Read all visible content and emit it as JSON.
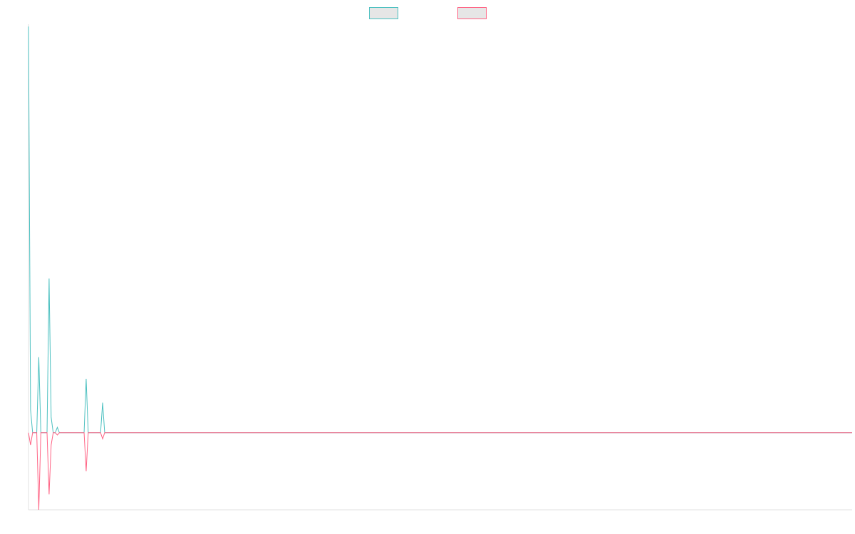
{
  "chart_data": {
    "type": "line",
    "title": "",
    "xlabel": "",
    "ylabel": "",
    "legend_position": "top-center",
    "grid": false,
    "x_labels_shown": false,
    "y_labels_shown": false,
    "xlim": [
      0,
      400
    ],
    "ylim": [
      -100,
      530
    ],
    "series": [
      {
        "color": "#4bc0c0",
        "legend_fill": "#e6e6e6",
        "x": [
          0,
          1,
          2,
          3,
          4,
          5,
          6,
          7,
          8,
          9,
          10,
          11,
          12,
          13,
          14,
          15,
          16,
          27,
          28,
          29,
          30,
          35,
          36,
          37,
          38,
          400
        ],
        "values": [
          527,
          30,
          0,
          0,
          0,
          98,
          0,
          0,
          0,
          0,
          200,
          20,
          0,
          0,
          7,
          0,
          0,
          0,
          70,
          0,
          0,
          0,
          39,
          0,
          0,
          0
        ]
      },
      {
        "color": "#ff6384",
        "legend_fill": "#e6e6e6",
        "x": [
          0,
          1,
          2,
          3,
          4,
          5,
          6,
          7,
          8,
          9,
          10,
          11,
          12,
          13,
          14,
          15,
          16,
          27,
          28,
          29,
          30,
          35,
          36,
          37,
          38,
          400
        ],
        "values": [
          0,
          -16,
          0,
          0,
          0,
          -100,
          0,
          0,
          0,
          0,
          -80,
          -16,
          0,
          0,
          -3,
          0,
          0,
          0,
          -50,
          0,
          0,
          0,
          -8,
          0,
          0,
          0
        ]
      }
    ]
  }
}
